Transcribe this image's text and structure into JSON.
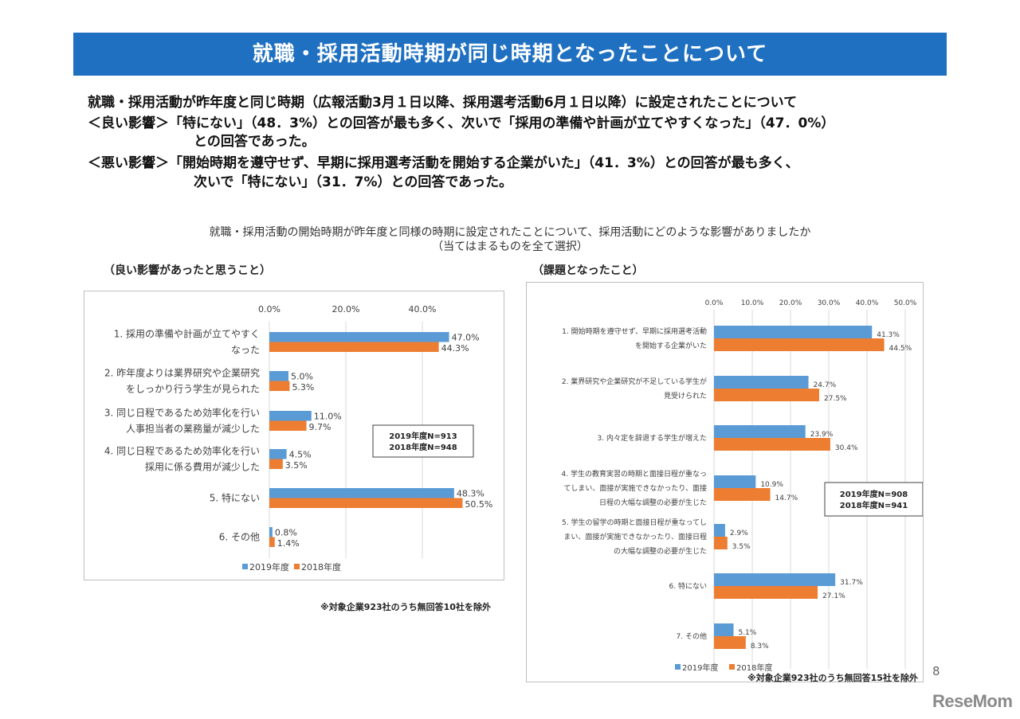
{
  "banner": {
    "title": "就職・採用活動時期が同じ時期となったことについて"
  },
  "summary": {
    "line1": "就職・採用活動が昨年度と同じ時期（広報活動3月１日以降、採用選考活動6月１日以降）に設定されたことについて",
    "good_label": "＜良い影響＞",
    "good_text1": "「特にない」（48．3%）との回答が最も多く、次いで「採用の準備や計画が立てやすくなった」（47．0%）",
    "good_text2": "との回答であった。",
    "bad_label": "＜悪い影響＞",
    "bad_text1": "「開始時期を遵守せず、早期に採用選考活動を開始する企業がいた」（41．3%）との回答が最も多く、",
    "bad_text2": "次いで「特にない」（31．7%）との回答であった。"
  },
  "question": {
    "line1": "就職・採用活動の開始時期が昨年度と同様の時期に設定されたことについて、採用活動にどのような影響がありましたか",
    "line2": "（当てはまるものを全て選択）"
  },
  "colors": {
    "banner": "#1f70c1",
    "series2019": "#5b9bd5",
    "series2018": "#ed7d31"
  },
  "chart_data": [
    {
      "type": "bar",
      "orientation": "horizontal",
      "title": "（良い影響があったと思うこと）",
      "xlim": [
        0,
        50
      ],
      "ticks": [
        "0.0%",
        "20.0%",
        "40.0%"
      ],
      "tick_values": [
        0,
        20,
        40
      ],
      "grid": true,
      "legend_position": "bottom",
      "categories": [
        [
          "1. 採用の準備や計画が立てやすく",
          "なった"
        ],
        [
          "2. 昨年度よりは業界研究や企業研究",
          "をしっかり行う学生が見られた"
        ],
        [
          "3. 同じ日程であるため効率化を行い",
          "人事担当者の業務量が減少した"
        ],
        [
          "4. 同じ日程であるため効率化を行い",
          "採用に係る費用が減少した"
        ],
        [
          "5. 特にない"
        ],
        [
          "6. その他"
        ]
      ],
      "series": [
        {
          "name": "2019年度",
          "values": [
            47.0,
            5.0,
            11.0,
            4.5,
            48.3,
            0.8
          ],
          "labels": [
            "47.0%",
            "5.0%",
            "11.0%",
            "4.5%",
            "48.3%",
            "0.8%"
          ]
        },
        {
          "name": "2018年度",
          "values": [
            44.3,
            5.3,
            9.7,
            3.5,
            50.5,
            1.4
          ],
          "labels": [
            "44.3%",
            "5.3%",
            "9.7%",
            "3.5%",
            "50.5%",
            "1.4%"
          ]
        }
      ],
      "annotation": [
        "2019年度N=913",
        "2018年度N=948"
      ],
      "note": "※対象企業923社のうち無回答10社を除外"
    },
    {
      "type": "bar",
      "orientation": "horizontal",
      "title": "（課題となったこと）",
      "xlim": [
        0,
        50
      ],
      "ticks": [
        "0.0%",
        "10.0%",
        "20.0%",
        "30.0%",
        "40.0%",
        "50.0%"
      ],
      "tick_values": [
        0,
        10,
        20,
        30,
        40,
        50
      ],
      "grid": true,
      "legend_position": "bottom",
      "categories": [
        [
          "1. 開始時期を遵守せず、早期に採用選考活動",
          "を開始する企業がいた"
        ],
        [
          "2. 業界研究や企業研究が不足している学生が",
          "見受けられた"
        ],
        [
          "3. 内々定を辞退する学生が増えた"
        ],
        [
          "4. 学生の教育実習の時期と面接日程が重なっ",
          "てしまい、面接が実施できなかったり、面接",
          "日程の大幅な調整の必要が生じた"
        ],
        [
          "5. 学生の留学の時期と面接日程が重なってし",
          "まい、面接が実施できなかったり、面接日程",
          "の大幅な調整の必要が生じた"
        ],
        [
          "6. 特にない"
        ],
        [
          "7. その他"
        ]
      ],
      "series": [
        {
          "name": "2019年度",
          "values": [
            41.3,
            24.7,
            23.9,
            10.9,
            2.9,
            31.7,
            5.1
          ],
          "labels": [
            "41.3%",
            "24.7%",
            "23.9%",
            "10.9%",
            "2.9%",
            "31.7%",
            "5.1%"
          ]
        },
        {
          "name": "2018年度",
          "values": [
            44.5,
            27.5,
            30.4,
            14.7,
            3.5,
            27.1,
            8.3
          ],
          "labels": [
            "44.5%",
            "27.5%",
            "30.4%",
            "14.7%",
            "3.5%",
            "27.1%",
            "8.3%"
          ]
        }
      ],
      "annotation": [
        "2019年度N=908",
        "2018年度N=941"
      ],
      "note": "※対象企業923社のうち無回答15社を除外"
    }
  ],
  "footer": {
    "page_number": "8",
    "logo": "ReseMom"
  }
}
